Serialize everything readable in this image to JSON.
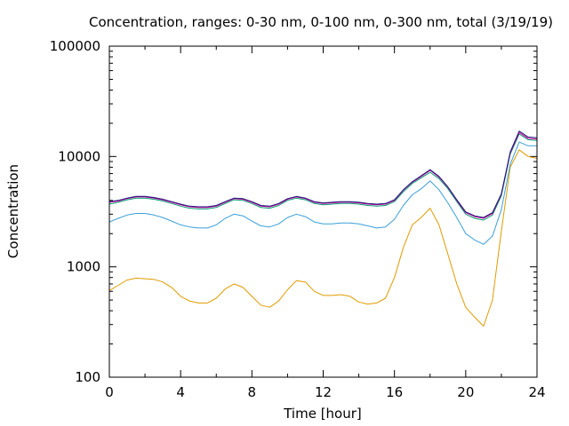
{
  "chart_data": {
    "type": "line",
    "title": "Concentration, ranges: 0-30 nm, 0-100 nm, 0-300 nm, total (3/19/19)",
    "xlabel": "Time [hour]",
    "ylabel": "Concentration",
    "xlim": [
      0,
      24
    ],
    "ylim": [
      100,
      100000
    ],
    "yscale": "log",
    "grid": false,
    "xticks": [
      "0",
      "4",
      "8",
      "12",
      "16",
      "20",
      "24"
    ],
    "yticks": [
      "100",
      "1000",
      "10000",
      "100000"
    ],
    "x": [
      0,
      0.5,
      1,
      1.5,
      2,
      2.5,
      3,
      3.5,
      4,
      4.5,
      5,
      5.5,
      6,
      6.5,
      7,
      7.5,
      8,
      8.5,
      9,
      9.5,
      10,
      10.5,
      11,
      11.5,
      12,
      12.5,
      13,
      13.5,
      14,
      14.5,
      15,
      15.5,
      16,
      16.5,
      17,
      17.5,
      18,
      18.5,
      19,
      19.5,
      20,
      20.5,
      21,
      21.5,
      22,
      22.5,
      23,
      23.5,
      24
    ],
    "series": [
      {
        "color": "#e09b00",
        "values": [
          610,
          680,
          760,
          790,
          780,
          770,
          730,
          650,
          540,
          490,
          470,
          470,
          520,
          630,
          700,
          650,
          540,
          450,
          430,
          490,
          620,
          750,
          730,
          600,
          550,
          550,
          560,
          540,
          480,
          460,
          470,
          520,
          800,
          1500,
          2400,
          2800,
          3400,
          2400,
          1300,
          700,
          430,
          350,
          290,
          500,
          2100,
          8000,
          11500,
          10000,
          9600
        ]
      },
      {
        "color": "#3a9fd8",
        "values": [
          2550,
          2750,
          2950,
          3050,
          3050,
          2950,
          2800,
          2600,
          2400,
          2300,
          2250,
          2250,
          2400,
          2750,
          3000,
          2900,
          2600,
          2350,
          2300,
          2450,
          2800,
          3000,
          2850,
          2550,
          2450,
          2450,
          2500,
          2500,
          2450,
          2350,
          2250,
          2300,
          2700,
          3600,
          4500,
          5100,
          6000,
          5000,
          3800,
          2800,
          2000,
          1750,
          1600,
          1900,
          3300,
          8500,
          13500,
          12500,
          12500
        ]
      },
      {
        "color": "#009e73",
        "values": [
          3700,
          3850,
          4050,
          4200,
          4200,
          4100,
          3950,
          3750,
          3550,
          3400,
          3350,
          3350,
          3450,
          3750,
          4050,
          4000,
          3750,
          3450,
          3400,
          3600,
          4000,
          4200,
          4050,
          3750,
          3650,
          3700,
          3750,
          3750,
          3700,
          3600,
          3550,
          3600,
          3900,
          4800,
          5700,
          6400,
          7200,
          6300,
          5100,
          3900,
          3000,
          2750,
          2650,
          2950,
          4400,
          10500,
          16000,
          14200,
          14000
        ]
      },
      {
        "color": "#d6009c",
        "values": [
          3850,
          3950,
          4150,
          4300,
          4300,
          4200,
          4050,
          3850,
          3650,
          3500,
          3450,
          3450,
          3550,
          3850,
          4150,
          4100,
          3850,
          3550,
          3500,
          3700,
          4100,
          4300,
          4150,
          3850,
          3750,
          3800,
          3850,
          3850,
          3800,
          3700,
          3650,
          3700,
          4000,
          4950,
          5850,
          6600,
          7500,
          6500,
          5250,
          4000,
          3100,
          2850,
          2750,
          3050,
          4550,
          10800,
          16500,
          14600,
          14400
        ]
      },
      {
        "color": "#1a1a7a",
        "values": [
          3900,
          4000,
          4200,
          4350,
          4350,
          4250,
          4100,
          3900,
          3700,
          3550,
          3500,
          3500,
          3600,
          3900,
          4200,
          4150,
          3900,
          3600,
          3550,
          3750,
          4150,
          4350,
          4200,
          3900,
          3800,
          3850,
          3900,
          3900,
          3850,
          3750,
          3700,
          3750,
          4050,
          5000,
          5900,
          6700,
          7600,
          6600,
          5300,
          4050,
          3150,
          2900,
          2800,
          3100,
          4600,
          11000,
          17000,
          15000,
          14800
        ]
      }
    ]
  }
}
